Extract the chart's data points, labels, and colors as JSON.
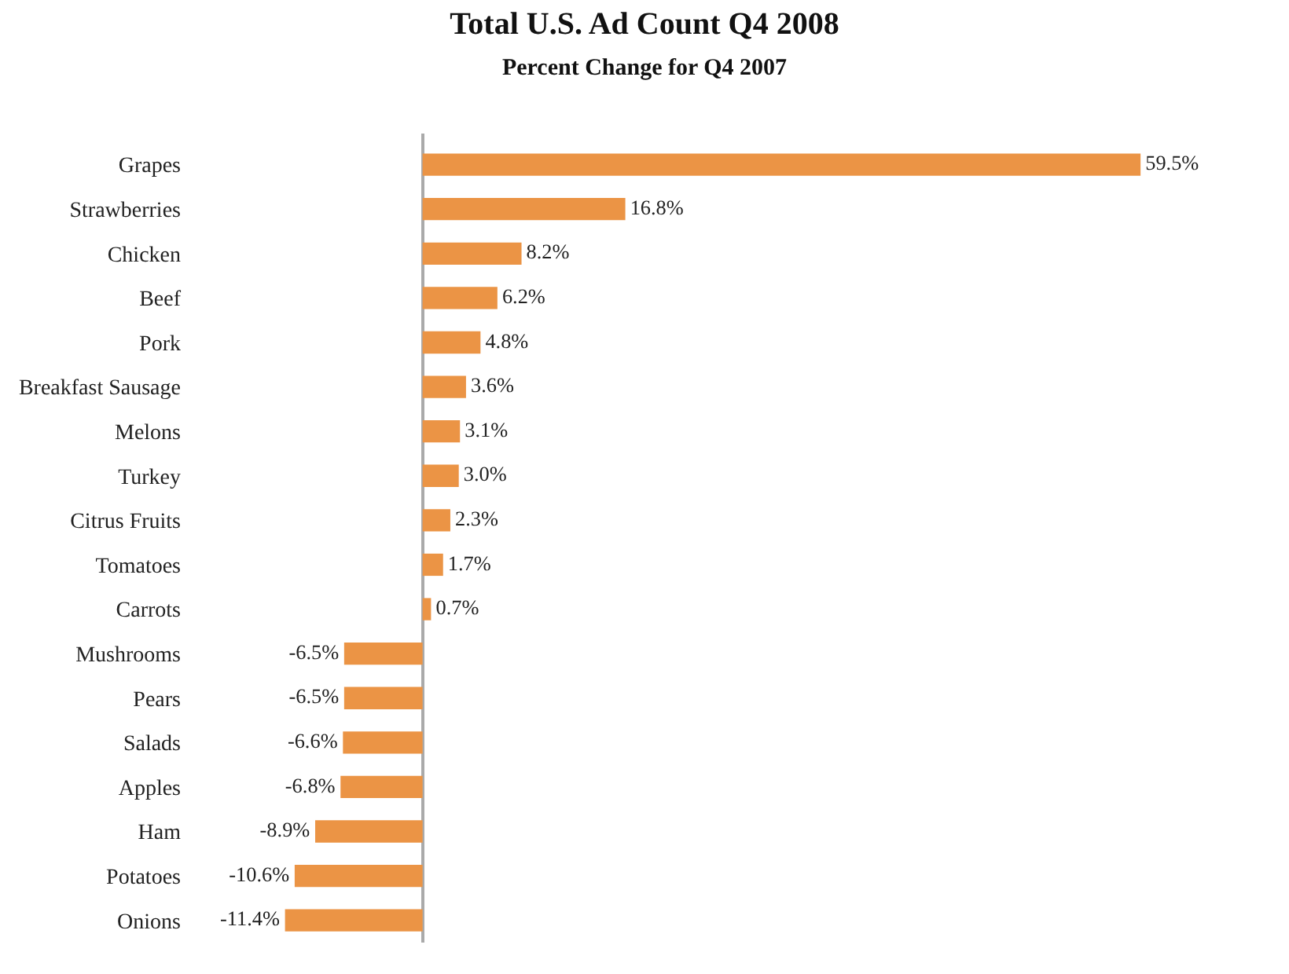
{
  "chart_data": {
    "type": "bar",
    "orientation": "horizontal",
    "title": "Total U.S. Ad Count Q4 2008",
    "subtitle": "Percent Change for Q4 2007",
    "categories": [
      "Grapes",
      "Strawberries",
      "Chicken",
      "Beef",
      "Pork",
      "Breakfast Sausage",
      "Melons",
      "Turkey",
      "Citrus Fruits",
      "Tomatoes",
      "Carrots",
      "Mushrooms",
      "Pears",
      "Salads",
      "Apples",
      "Ham",
      "Potatoes",
      "Onions"
    ],
    "values": [
      59.5,
      16.8,
      8.2,
      6.2,
      4.8,
      3.6,
      3.1,
      3.0,
      2.3,
      1.7,
      0.7,
      -6.5,
      -6.5,
      -6.6,
      -6.8,
      -8.9,
      -10.6,
      -11.4
    ],
    "value_labels": [
      "59.5%",
      "16.8%",
      "8.2%",
      "6.2%",
      "4.8%",
      "3.6%",
      "3.1%",
      "3.0%",
      "2.3%",
      "1.7%",
      "0.7%",
      "-6.5%",
      "-6.5%",
      "-6.6%",
      "-6.8%",
      "-8.9%",
      "-10.6%",
      "-11.4%"
    ],
    "color": "#eb9445",
    "tick_labels": "y"
  }
}
